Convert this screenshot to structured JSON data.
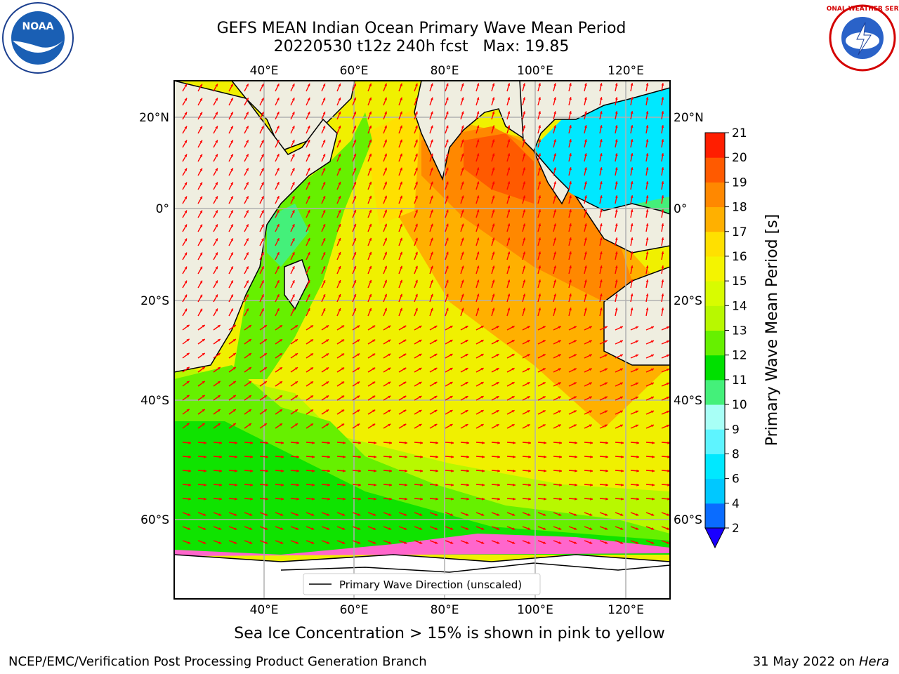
{
  "title": {
    "line1": "GEFS MEAN Indian Ocean Primary Wave Mean Period",
    "line2": "20220530 t12z 240h fcst   Max: 19.85"
  },
  "logos": {
    "left": {
      "icon": "noaa-logo",
      "text": "NOAA"
    },
    "right": {
      "icon": "nws-logo",
      "text": "NATIONAL WEATHER SERVICE"
    }
  },
  "map": {
    "lon_range": [
      20,
      130
    ],
    "lat_range": [
      -72,
      28
    ],
    "lon_ticks": [
      "40°E",
      "60°E",
      "80°E",
      "100°E",
      "120°E"
    ],
    "lat_ticks": [
      "20°N",
      "0°",
      "20°S",
      "40°S",
      "60°S"
    ],
    "grid": true,
    "legend_label": "Primary Wave Direction (unscaled)",
    "arrow_color": "#ff0000",
    "land_color": "#efeee0"
  },
  "colorbar": {
    "label": "Primary Wave Mean Period [s]",
    "ticks": [
      "2",
      "4",
      "6",
      "8",
      "9",
      "10",
      "11",
      "12",
      "13",
      "14",
      "15",
      "16",
      "17",
      "18",
      "19",
      "20",
      "21"
    ],
    "colors": [
      "#0a6cff",
      "#00c8ff",
      "#00e8ff",
      "#5ef4ff",
      "#a8fff6",
      "#44f07a",
      "#00e000",
      "#66f000",
      "#b8f800",
      "#d8fc00",
      "#f4f400",
      "#ffe000",
      "#ffb000",
      "#ff8800",
      "#ff5a00",
      "#ff1e00"
    ],
    "under_color": "#1a00ff"
  },
  "subtitle": "Sea Ice Concentration > 15% is shown in pink to yellow",
  "footer": {
    "left": "NCEP/EMC/Verification Post Processing Product Generation Branch",
    "right_prefix": "31 May 2022 on ",
    "right_host": "Hera"
  }
}
